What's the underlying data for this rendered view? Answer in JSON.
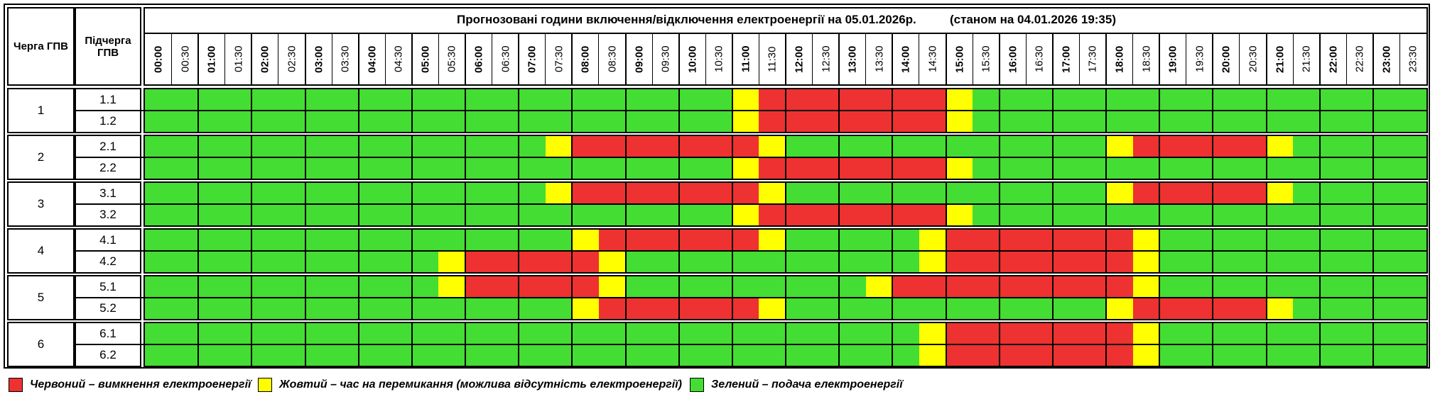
{
  "table": {
    "title": "Прогнозовані години включення/відключення електроенергії на 05.01.2026р.          (станом на 04.01.2026 19:35)",
    "col_group": "Черга ГПВ",
    "col_subgroup": "Підчерга ГПВ",
    "times": [
      "00:00",
      "00:30",
      "01:00",
      "01:30",
      "02:00",
      "02:30",
      "03:00",
      "03:30",
      "04:00",
      "04:30",
      "05:00",
      "05:30",
      "06:00",
      "06:30",
      "07:00",
      "07:30",
      "08:00",
      "08:30",
      "09:00",
      "09:30",
      "10:00",
      "10:30",
      "11:00",
      "11:30",
      "12:00",
      "12:30",
      "13:00",
      "13:30",
      "14:00",
      "14:30",
      "15:00",
      "15:30",
      "16:00",
      "16:30",
      "17:00",
      "17:30",
      "18:00",
      "18:30",
      "19:00",
      "19:30",
      "20:00",
      "20:30",
      "21:00",
      "21:30",
      "22:00",
      "22:30",
      "23:00",
      "23:30"
    ],
    "groups": [
      {
        "label": "1",
        "subgroups": [
          {
            "label": "1.1",
            "slots": "GGGGGGGGGGGGGGGGGGGGGGYRRRRRRRYGGGGGGGGGGGGGGGGG"
          },
          {
            "label": "1.2",
            "slots": "GGGGGGGGGGGGGGGGGGGGGGYRRRRRRRYGGGGGGGGGGGGGGGGG"
          }
        ]
      },
      {
        "label": "2",
        "subgroups": [
          {
            "label": "2.1",
            "slots": "GGGGGGGGGGGGGGGYRRRRRRRYGGGGGGGGGGGGYRRRRRYGGGGG"
          },
          {
            "label": "2.2",
            "slots": "GGGGGGGGGGGGGGGGGGGGGGYRRRRRRRYGGGGGGGGGGGGGGGGG"
          }
        ]
      },
      {
        "label": "3",
        "subgroups": [
          {
            "label": "3.1",
            "slots": "GGGGGGGGGGGGGGGYRRRRRRRYGGGGGGGGGGGGYRRRRRYGGGGG"
          },
          {
            "label": "3.2",
            "slots": "GGGGGGGGGGGGGGGGGGGGGGYRRRRRRRYGGGGGGGGGGGGGGGGG"
          }
        ]
      },
      {
        "label": "4",
        "subgroups": [
          {
            "label": "4.1",
            "slots": "GGGGGGGGGGGGGGGGYRRRRRRYGGGGGYRRRRRRRYGGGGGGGGGG"
          },
          {
            "label": "4.2",
            "slots": "GGGGGGGGGGGYRRRRRYGGGGGGGGGGGYRRRRRRRYGGGGGGGGGG"
          }
        ]
      },
      {
        "label": "5",
        "subgroups": [
          {
            "label": "5.1",
            "slots": "GGGGGGGGGGGYRRRRRYGGGGGGGGGYRRRRRRRRRYGGGGGGGGGG"
          },
          {
            "label": "5.2",
            "slots": "GGGGGGGGGGGGGGGGYRRRRRRYGGGGGGGGGGGGYRRRRRYGGGGG"
          }
        ]
      },
      {
        "label": "6",
        "subgroups": [
          {
            "label": "6.1",
            "slots": "GGGGGGGGGGGGGGGGGGGGGGGGGGGGGYRRRRRRRYGGGGGGGGGG"
          },
          {
            "label": "6.2",
            "slots": "GGGGGGGGGGGGGGGGGGGGGGGGGGGGGYRRRRRRRYGGGGGGGGGG"
          }
        ]
      }
    ]
  },
  "colors": {
    "R": "#ee3131",
    "Y": "#ffff00",
    "G": "#44dd33"
  },
  "legend": [
    {
      "key": "R",
      "color": "#ee3131",
      "text": "Червоний – вимкнення електроенергії"
    },
    {
      "key": "Y",
      "color": "#ffff00",
      "text": "Жовтий – час на перемикання (можлива відсутність електроенергії)"
    },
    {
      "key": "G",
      "color": "#44dd33",
      "text": "Зелений – подача електроенергії"
    }
  ]
}
